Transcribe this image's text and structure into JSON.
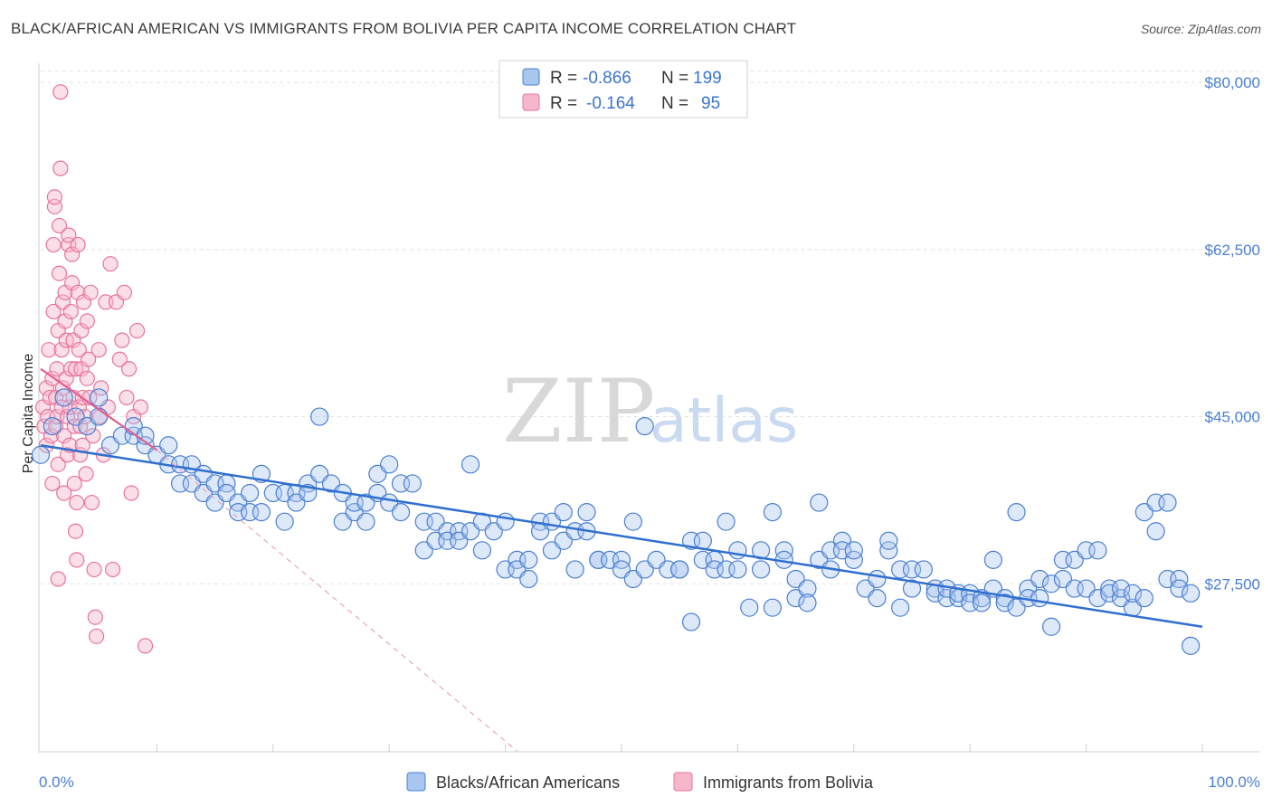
{
  "title": "BLACK/AFRICAN AMERICAN VS IMMIGRANTS FROM BOLIVIA PER CAPITA INCOME CORRELATION CHART",
  "source": "Source: ZipAtlas.com",
  "watermark": {
    "zip": "ZIP",
    "atlas": "atlas"
  },
  "colors": {
    "blue": "#4a7fd4",
    "blue_fill": "#a9c6ee",
    "pink": "#e8739a",
    "pink_fill": "#f6b7cb",
    "grid": "#e2e2e2"
  },
  "legend": {
    "r_label": "R =",
    "n_label": "N =",
    "series": [
      {
        "r": "-0.866",
        "n": "199"
      },
      {
        "r": "-0.164",
        "n": "95"
      }
    ]
  },
  "chart_data": {
    "type": "scatter",
    "title": "BLACK/AFRICAN AMERICAN VS IMMIGRANTS FROM BOLIVIA PER CAPITA INCOME CORRELATION CHART",
    "xlabel": "",
    "ylabel": "Per Capita Income",
    "xlim": [
      0,
      100
    ],
    "ylim": [
      10000,
      82000
    ],
    "x_tick_labels": [
      "0.0%",
      "100.0%"
    ],
    "y_ticks": [
      27500,
      45000,
      62500,
      80000
    ],
    "y_tick_labels": [
      "$27,500",
      "$45,000",
      "$62,500",
      "$80,000"
    ],
    "legend_placement": "top-center",
    "series": [
      {
        "name": "Blacks/African Americans",
        "color": "#4a7fd4",
        "r": -0.866,
        "n": 199,
        "trend": {
          "x": [
            0,
            100
          ],
          "y": [
            42000,
            23000
          ]
        },
        "points": [
          [
            0,
            41000
          ],
          [
            1,
            44000
          ],
          [
            2,
            47000
          ],
          [
            3,
            45000
          ],
          [
            4,
            44000
          ],
          [
            5,
            45000
          ],
          [
            5,
            47000
          ],
          [
            6,
            42000
          ],
          [
            7,
            43000
          ],
          [
            8,
            43000
          ],
          [
            8,
            44000
          ],
          [
            9,
            42000
          ],
          [
            9,
            43000
          ],
          [
            10,
            41000
          ],
          [
            11,
            40000
          ],
          [
            11,
            42000
          ],
          [
            12,
            40000
          ],
          [
            12,
            38000
          ],
          [
            13,
            38000
          ],
          [
            13,
            40000
          ],
          [
            14,
            39000
          ],
          [
            14,
            37000
          ],
          [
            15,
            38000
          ],
          [
            15,
            36000
          ],
          [
            16,
            38000
          ],
          [
            16,
            37000
          ],
          [
            17,
            36000
          ],
          [
            17,
            35000
          ],
          [
            18,
            37000
          ],
          [
            18,
            35000
          ],
          [
            19,
            39000
          ],
          [
            19,
            35000
          ],
          [
            20,
            37000
          ],
          [
            21,
            37000
          ],
          [
            21,
            34000
          ],
          [
            22,
            37000
          ],
          [
            22,
            36000
          ],
          [
            23,
            38000
          ],
          [
            23,
            37000
          ],
          [
            24,
            39000
          ],
          [
            24,
            45000
          ],
          [
            25,
            38000
          ],
          [
            26,
            37000
          ],
          [
            26,
            34000
          ],
          [
            27,
            35000
          ],
          [
            27,
            36000
          ],
          [
            28,
            36000
          ],
          [
            28,
            34000
          ],
          [
            29,
            39000
          ],
          [
            29,
            37000
          ],
          [
            30,
            36000
          ],
          [
            30,
            40000
          ],
          [
            31,
            38000
          ],
          [
            31,
            35000
          ],
          [
            32,
            38000
          ],
          [
            33,
            34000
          ],
          [
            33,
            31000
          ],
          [
            34,
            32000
          ],
          [
            34,
            34000
          ],
          [
            35,
            33000
          ],
          [
            35,
            32000
          ],
          [
            36,
            33000
          ],
          [
            36,
            32000
          ],
          [
            37,
            33000
          ],
          [
            37,
            40000
          ],
          [
            38,
            34000
          ],
          [
            38,
            31000
          ],
          [
            39,
            33000
          ],
          [
            40,
            34000
          ],
          [
            40,
            29000
          ],
          [
            41,
            30000
          ],
          [
            41,
            29000
          ],
          [
            42,
            30000
          ],
          [
            42,
            28000
          ],
          [
            43,
            34000
          ],
          [
            43,
            33000
          ],
          [
            44,
            34000
          ],
          [
            44,
            31000
          ],
          [
            45,
            35000
          ],
          [
            45,
            32000
          ],
          [
            46,
            33000
          ],
          [
            46,
            29000
          ],
          [
            47,
            35000
          ],
          [
            47,
            33000
          ],
          [
            48,
            30000
          ],
          [
            48,
            30000
          ],
          [
            49,
            30000
          ],
          [
            50,
            30000
          ],
          [
            50,
            29000
          ],
          [
            51,
            28000
          ],
          [
            51,
            34000
          ],
          [
            52,
            29000
          ],
          [
            52,
            44000
          ],
          [
            53,
            30000
          ],
          [
            54,
            29000
          ],
          [
            55,
            29000
          ],
          [
            55,
            29000
          ],
          [
            56,
            32000
          ],
          [
            56,
            23500
          ],
          [
            57,
            32000
          ],
          [
            57,
            30000
          ],
          [
            58,
            30000
          ],
          [
            58,
            29000
          ],
          [
            59,
            29000
          ],
          [
            59,
            34000
          ],
          [
            60,
            29000
          ],
          [
            60,
            31000
          ],
          [
            61,
            25000
          ],
          [
            62,
            29000
          ],
          [
            62,
            31000
          ],
          [
            63,
            35000
          ],
          [
            63,
            25000
          ],
          [
            64,
            31000
          ],
          [
            64,
            30000
          ],
          [
            65,
            28000
          ],
          [
            65,
            26000
          ],
          [
            66,
            27000
          ],
          [
            66,
            25500
          ],
          [
            67,
            36000
          ],
          [
            67,
            30000
          ],
          [
            68,
            29000
          ],
          [
            68,
            31000
          ],
          [
            69,
            32000
          ],
          [
            69,
            31000
          ],
          [
            70,
            30000
          ],
          [
            70,
            31000
          ],
          [
            71,
            27000
          ],
          [
            72,
            28000
          ],
          [
            72,
            26000
          ],
          [
            73,
            31000
          ],
          [
            73,
            32000
          ],
          [
            74,
            29000
          ],
          [
            74,
            25000
          ],
          [
            75,
            29000
          ],
          [
            75,
            27000
          ],
          [
            76,
            29000
          ],
          [
            77,
            27000
          ],
          [
            77,
            26500
          ],
          [
            78,
            26000
          ],
          [
            78,
            27000
          ],
          [
            79,
            26000
          ],
          [
            79,
            26500
          ],
          [
            80,
            26500
          ],
          [
            80,
            25500
          ],
          [
            81,
            26000
          ],
          [
            81,
            25500
          ],
          [
            82,
            30000
          ],
          [
            82,
            27000
          ],
          [
            83,
            26000
          ],
          [
            83,
            25500
          ],
          [
            84,
            35000
          ],
          [
            84,
            25000
          ],
          [
            85,
            27000
          ],
          [
            85,
            26000
          ],
          [
            86,
            28000
          ],
          [
            86,
            26000
          ],
          [
            87,
            23000
          ],
          [
            87,
            27500
          ],
          [
            88,
            30000
          ],
          [
            88,
            28000
          ],
          [
            89,
            27000
          ],
          [
            89,
            30000
          ],
          [
            90,
            31000
          ],
          [
            90,
            27000
          ],
          [
            91,
            31000
          ],
          [
            91,
            26000
          ],
          [
            92,
            27000
          ],
          [
            92,
            26500
          ],
          [
            93,
            26000
          ],
          [
            93,
            27000
          ],
          [
            94,
            25000
          ],
          [
            94,
            26500
          ],
          [
            95,
            26000
          ],
          [
            95,
            35000
          ],
          [
            96,
            33000
          ],
          [
            96,
            36000
          ],
          [
            97,
            36000
          ],
          [
            97,
            28000
          ],
          [
            98,
            28000
          ],
          [
            98,
            27000
          ],
          [
            99,
            26500
          ],
          [
            99,
            21000
          ]
        ]
      },
      {
        "name": "Immigrants from Bolivia",
        "color": "#e8739a",
        "r": -0.164,
        "n": 95,
        "trend_solid": {
          "x": [
            0,
            10
          ],
          "y": [
            50000,
            41500
          ]
        },
        "trend_dashed": {
          "x": [
            10,
            41
          ],
          "y": [
            41500,
            10000
          ]
        },
        "points": [
          [
            0.2,
            46000
          ],
          [
            0.3,
            44000
          ],
          [
            0.5,
            48000
          ],
          [
            0.5,
            42000
          ],
          [
            0.6,
            45000
          ],
          [
            0.7,
            52000
          ],
          [
            0.8,
            47000
          ],
          [
            0.9,
            43000
          ],
          [
            1,
            49000
          ],
          [
            1,
            38000
          ],
          [
            1.1,
            56000
          ],
          [
            1.1,
            63000
          ],
          [
            1.2,
            67000
          ],
          [
            1.2,
            68000
          ],
          [
            1.3,
            47000
          ],
          [
            1.3,
            44000
          ],
          [
            1.4,
            50000
          ],
          [
            1.4,
            45000
          ],
          [
            1.5,
            54000
          ],
          [
            1.5,
            40000
          ],
          [
            1.6,
            60000
          ],
          [
            1.6,
            65000
          ],
          [
            1.7,
            71000
          ],
          [
            1.7,
            79000
          ],
          [
            1.8,
            52000
          ],
          [
            1.8,
            46000
          ],
          [
            1.9,
            57000
          ],
          [
            1.9,
            48000
          ],
          [
            2,
            43000
          ],
          [
            2,
            37000
          ],
          [
            2.1,
            58000
          ],
          [
            2.1,
            55000
          ],
          [
            2.2,
            53000
          ],
          [
            2.2,
            49000
          ],
          [
            2.3,
            45000
          ],
          [
            2.3,
            41000
          ],
          [
            2.4,
            63000
          ],
          [
            2.4,
            64000
          ],
          [
            2.5,
            46000
          ],
          [
            2.5,
            42000
          ],
          [
            2.6,
            50000
          ],
          [
            2.6,
            56000
          ],
          [
            2.7,
            59000
          ],
          [
            2.7,
            62000
          ],
          [
            2.8,
            47000
          ],
          [
            2.8,
            53000
          ],
          [
            2.9,
            44000
          ],
          [
            2.9,
            38000
          ],
          [
            3,
            50000
          ],
          [
            3,
            33000
          ],
          [
            3.1,
            36000
          ],
          [
            3.1,
            30000
          ],
          [
            3.2,
            63000
          ],
          [
            3.2,
            58000
          ],
          [
            3.3,
            52000
          ],
          [
            3.3,
            46000
          ],
          [
            3.4,
            44000
          ],
          [
            3.4,
            41000
          ],
          [
            3.5,
            54000
          ],
          [
            3.5,
            50000
          ],
          [
            3.6,
            47000
          ],
          [
            3.6,
            42000
          ],
          [
            3.7,
            57000
          ],
          [
            3.8,
            45000
          ],
          [
            3.9,
            39000
          ],
          [
            4,
            49000
          ],
          [
            4,
            55000
          ],
          [
            4.1,
            51000
          ],
          [
            4.2,
            47000
          ],
          [
            4.3,
            58000
          ],
          [
            4.4,
            36000
          ],
          [
            4.5,
            43000
          ],
          [
            4.6,
            29000
          ],
          [
            4.7,
            24000
          ],
          [
            4.8,
            22000
          ],
          [
            5,
            52000
          ],
          [
            5.1,
            45000
          ],
          [
            5.2,
            48000
          ],
          [
            5.4,
            41000
          ],
          [
            5.6,
            57000
          ],
          [
            5.8,
            46000
          ],
          [
            6,
            61000
          ],
          [
            6.2,
            29000
          ],
          [
            6.5,
            57000
          ],
          [
            6.8,
            51000
          ],
          [
            7,
            53000
          ],
          [
            7.2,
            58000
          ],
          [
            7.4,
            47000
          ],
          [
            7.6,
            50000
          ],
          [
            7.8,
            37000
          ],
          [
            8,
            45000
          ],
          [
            8.3,
            54000
          ],
          [
            8.6,
            46000
          ],
          [
            9,
            21000
          ],
          [
            1.5,
            28000
          ]
        ]
      }
    ],
    "bottom_legend": [
      "Blacks/African Americans",
      "Immigrants from Bolivia"
    ]
  }
}
